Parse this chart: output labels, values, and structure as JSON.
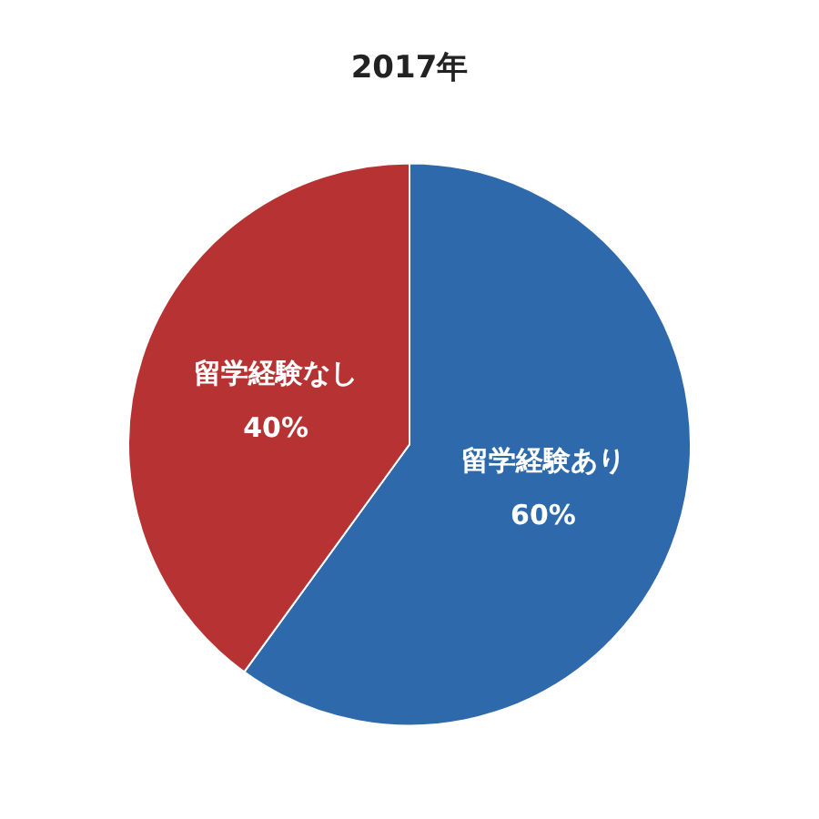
{
  "chart_data": {
    "type": "pie",
    "title": "2017年",
    "categories": [
      "留学経験あり",
      "留学経験なし"
    ],
    "values": [
      60,
      40
    ],
    "colors": [
      "#2e69ab",
      "#b73333"
    ],
    "value_labels": [
      "60%",
      "40%"
    ],
    "legend": false
  }
}
